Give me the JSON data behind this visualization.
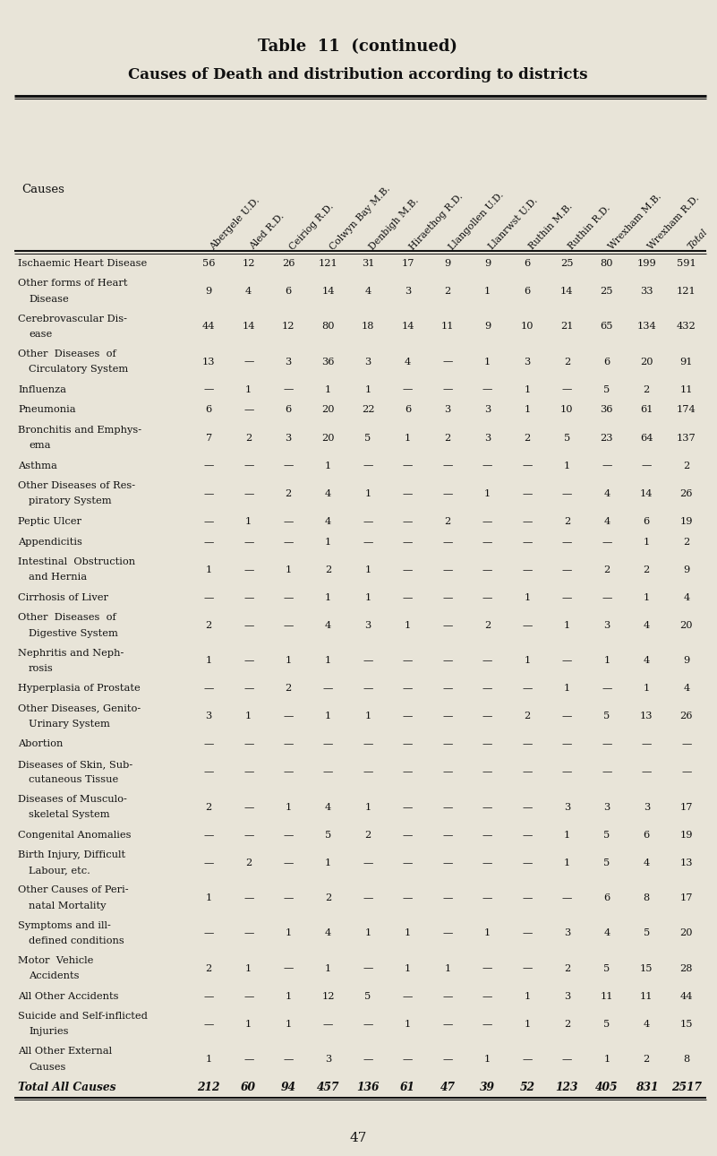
{
  "title1": "Table  11  (continued)",
  "title2": "Causes of Death and distribution according to districts",
  "columns": [
    "Abergele U.D.",
    "Aled R.D.",
    "Ceiriog R.D.",
    "Colwyn Bay M.B.",
    "Denbigh M.B.",
    "Hiraethog R.D.",
    "Llangollen U.D.",
    "Llanrwst U.D.",
    "Ruthin M.B.",
    "Ruthin R.D.",
    "Wrexham M.B.",
    "Wrexham R.D.",
    "Total"
  ],
  "col_italic": [
    false,
    false,
    false,
    false,
    false,
    false,
    false,
    false,
    false,
    false,
    false,
    false,
    true
  ],
  "causes": [
    [
      "Ischaemic Heart Disease",
      ""
    ],
    [
      "Other forms of Heart",
      "Disease"
    ],
    [
      "Cerebrovascular Dis-",
      "ease"
    ],
    [
      "Other  Diseases  of",
      "Circulatory System"
    ],
    [
      "Influenza",
      ""
    ],
    [
      "Pneumonia",
      ""
    ],
    [
      "Bronchitis and Emphys-",
      "ema"
    ],
    [
      "Asthma",
      ""
    ],
    [
      "Other Diseases of Res-",
      "piratory System"
    ],
    [
      "Peptic Ulcer",
      ""
    ],
    [
      "Appendicitis",
      ""
    ],
    [
      "Intestinal  Obstruction",
      "and Hernia"
    ],
    [
      "Cirrhosis of Liver",
      ""
    ],
    [
      "Other  Diseases  of",
      "Digestive System"
    ],
    [
      "Nephritis and Neph-",
      "rosis"
    ],
    [
      "Hyperplasia of Prostate",
      ""
    ],
    [
      "Other Diseases, Genito-",
      "Urinary System"
    ],
    [
      "Abortion",
      ""
    ],
    [
      "Diseases of Skin, Sub-",
      "cutaneous Tissue"
    ],
    [
      "Diseases of Musculo-",
      "skeletal System"
    ],
    [
      "Congenital Anomalies",
      ""
    ],
    [
      "Birth Injury, Difficult",
      "Labour, etc."
    ],
    [
      "Other Causes of Peri-",
      "natal Mortality"
    ],
    [
      "Symptoms and ill-",
      "defined conditions"
    ],
    [
      "Motor  Vehicle",
      "Accidents"
    ],
    [
      "All Other Accidents",
      ""
    ],
    [
      "Suicide and Self-inflicted",
      "Injuries"
    ],
    [
      "All Other External",
      "Causes"
    ],
    [
      "Total All Causes",
      ""
    ]
  ],
  "data": [
    [
      56,
      12,
      26,
      121,
      31,
      17,
      9,
      9,
      6,
      25,
      80,
      199,
      591
    ],
    [
      9,
      4,
      6,
      14,
      4,
      3,
      2,
      1,
      6,
      14,
      25,
      33,
      121
    ],
    [
      44,
      14,
      12,
      80,
      18,
      14,
      11,
      9,
      10,
      21,
      65,
      134,
      432
    ],
    [
      13,
      0,
      3,
      36,
      3,
      4,
      0,
      1,
      3,
      2,
      6,
      20,
      91
    ],
    [
      0,
      1,
      0,
      1,
      1,
      0,
      0,
      0,
      1,
      0,
      5,
      2,
      11
    ],
    [
      6,
      0,
      6,
      20,
      22,
      6,
      3,
      3,
      1,
      10,
      36,
      61,
      174
    ],
    [
      7,
      2,
      3,
      20,
      5,
      1,
      2,
      3,
      2,
      5,
      23,
      64,
      137
    ],
    [
      0,
      0,
      0,
      1,
      0,
      0,
      0,
      0,
      0,
      1,
      0,
      0,
      2
    ],
    [
      0,
      0,
      2,
      4,
      1,
      0,
      0,
      1,
      0,
      0,
      4,
      14,
      26
    ],
    [
      0,
      1,
      0,
      4,
      0,
      0,
      2,
      0,
      0,
      2,
      4,
      6,
      19
    ],
    [
      0,
      0,
      0,
      1,
      0,
      0,
      0,
      0,
      0,
      0,
      0,
      1,
      2
    ],
    [
      1,
      0,
      1,
      2,
      1,
      0,
      0,
      0,
      0,
      0,
      2,
      2,
      9
    ],
    [
      0,
      0,
      0,
      1,
      1,
      0,
      0,
      0,
      1,
      0,
      0,
      1,
      4
    ],
    [
      2,
      0,
      0,
      4,
      3,
      1,
      0,
      2,
      0,
      1,
      3,
      4,
      20
    ],
    [
      1,
      0,
      1,
      1,
      0,
      0,
      0,
      0,
      1,
      0,
      1,
      4,
      9
    ],
    [
      0,
      0,
      2,
      0,
      0,
      0,
      0,
      0,
      0,
      1,
      0,
      1,
      4
    ],
    [
      3,
      1,
      0,
      1,
      1,
      0,
      0,
      0,
      2,
      0,
      5,
      13,
      26
    ],
    [
      0,
      0,
      0,
      0,
      0,
      0,
      0,
      0,
      0,
      0,
      0,
      0,
      0
    ],
    [
      0,
      0,
      0,
      0,
      0,
      0,
      0,
      0,
      0,
      0,
      0,
      0,
      0
    ],
    [
      2,
      0,
      1,
      4,
      1,
      0,
      0,
      0,
      0,
      3,
      3,
      3,
      17
    ],
    [
      0,
      0,
      0,
      5,
      2,
      0,
      0,
      0,
      0,
      1,
      5,
      6,
      19
    ],
    [
      0,
      2,
      0,
      1,
      0,
      0,
      0,
      0,
      0,
      1,
      5,
      4,
      13
    ],
    [
      1,
      0,
      0,
      2,
      0,
      0,
      0,
      0,
      0,
      0,
      6,
      8,
      17
    ],
    [
      0,
      0,
      1,
      4,
      1,
      1,
      0,
      1,
      0,
      3,
      4,
      5,
      20
    ],
    [
      2,
      1,
      0,
      1,
      0,
      1,
      1,
      0,
      0,
      2,
      5,
      15,
      28
    ],
    [
      0,
      0,
      1,
      12,
      5,
      0,
      0,
      0,
      1,
      3,
      11,
      11,
      44
    ],
    [
      0,
      1,
      1,
      0,
      0,
      1,
      0,
      0,
      1,
      2,
      5,
      4,
      15
    ],
    [
      1,
      0,
      0,
      3,
      0,
      0,
      0,
      1,
      0,
      0,
      1,
      2,
      8
    ],
    [
      212,
      60,
      94,
      457,
      136,
      61,
      47,
      39,
      52,
      123,
      405,
      831,
      2517
    ]
  ],
  "bg_color": "#e8e4d8",
  "text_color": "#111111",
  "line_color": "#111111",
  "page_number": "47"
}
